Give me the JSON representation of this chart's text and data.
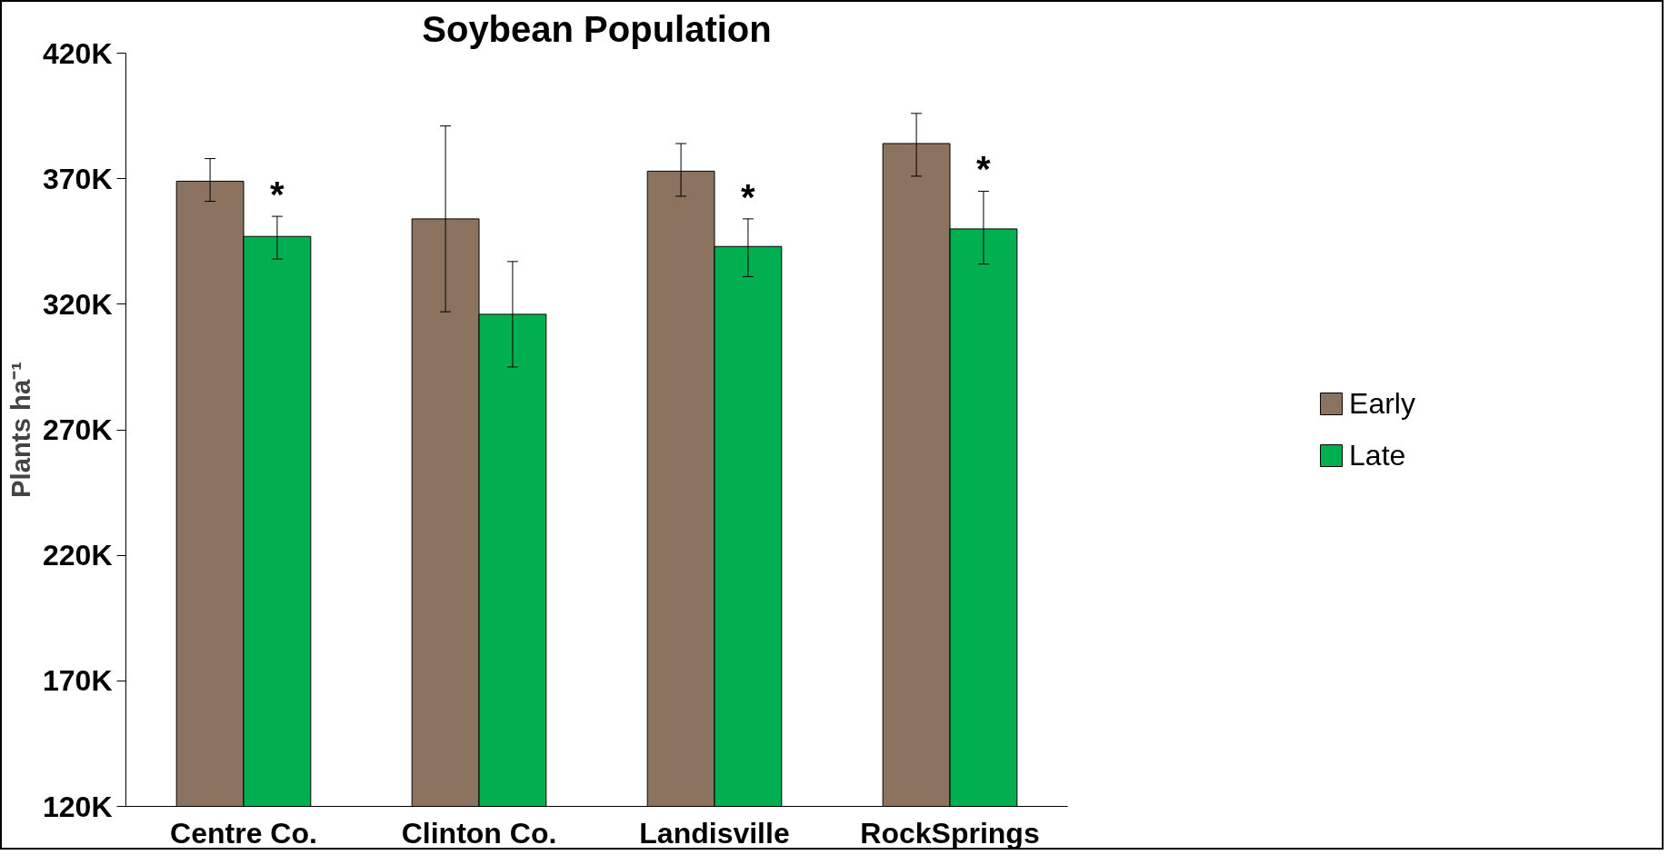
{
  "chart_data": {
    "type": "bar",
    "title": "Soybean Population",
    "ylabel": "Plants ha⁻¹",
    "categories": [
      "Centre Co.",
      "Clinton Co.",
      "Landisville",
      "RockSprings"
    ],
    "series": [
      {
        "name": "Early",
        "color": "#8b7360",
        "values": [
          369000,
          354000,
          373000,
          384000
        ],
        "errors": [
          [
            361000,
            378000
          ],
          [
            317000,
            391000
          ],
          [
            363000,
            384000
          ],
          [
            371000,
            396000
          ]
        ]
      },
      {
        "name": "Late",
        "color": "#00b050",
        "values": [
          347000,
          316000,
          343000,
          350000
        ],
        "errors": [
          [
            338000,
            355000
          ],
          [
            295000,
            337000
          ],
          [
            331000,
            354000
          ],
          [
            336000,
            365000
          ]
        ]
      }
    ],
    "annotations": [
      {
        "text": "*",
        "x": "Centre Co.",
        "y": 355000
      },
      {
        "text": "*",
        "x": "Landisville",
        "y": 354000
      },
      {
        "text": "*",
        "x": "RockSprings",
        "y": 365000
      }
    ],
    "ylim": [
      120000,
      420000
    ],
    "yticks": [
      {
        "value": 120000,
        "label": "120K"
      },
      {
        "value": 170000,
        "label": "170K"
      },
      {
        "value": 220000,
        "label": "220K"
      },
      {
        "value": 270000,
        "label": "270K"
      },
      {
        "value": 320000,
        "label": "320K"
      },
      {
        "value": 370000,
        "label": "370K"
      },
      {
        "value": 420000,
        "label": "420K"
      }
    ],
    "grid": false,
    "legend": "right"
  }
}
